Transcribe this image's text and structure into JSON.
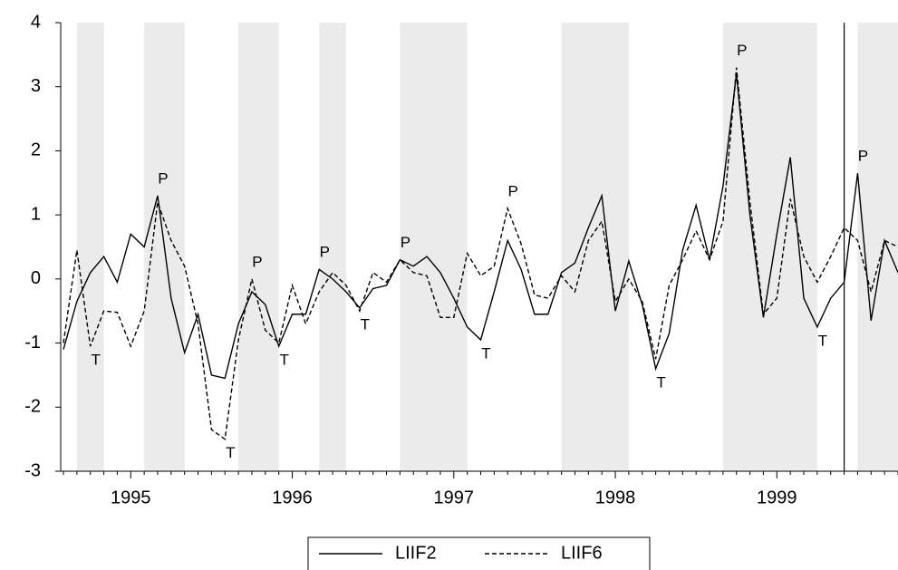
{
  "chart_data": {
    "type": "line",
    "categories": [
      null,
      null,
      null,
      null,
      null,
      "1995",
      null,
      null,
      null,
      null,
      null,
      null,
      null,
      null,
      null,
      null,
      null,
      "1996",
      null,
      null,
      null,
      null,
      null,
      null,
      null,
      null,
      null,
      null,
      null,
      "1997",
      null,
      null,
      null,
      null,
      null,
      null,
      null,
      null,
      null,
      null,
      null,
      "1998",
      null,
      null,
      null,
      null,
      null,
      null,
      null,
      null,
      null,
      null,
      null,
      "1999",
      null,
      null,
      null,
      null,
      null,
      null,
      null,
      null,
      null
    ],
    "series": [
      {
        "name": "LIIF2",
        "color": "#000000",
        "dashed": false,
        "values": [
          -1.1,
          -0.35,
          0.1,
          0.35,
          -0.05,
          0.7,
          0.5,
          1.3,
          -0.3,
          -1.15,
          -0.55,
          -1.5,
          -1.55,
          -0.7,
          -0.2,
          -0.4,
          -1.05,
          -0.55,
          -0.55,
          0.15,
          0.0,
          -0.2,
          -0.45,
          -0.15,
          -0.1,
          0.3,
          0.2,
          0.35,
          0.1,
          -0.3,
          -0.75,
          -0.95,
          -0.2,
          0.6,
          0.15,
          -0.55,
          -0.55,
          0.1,
          0.25,
          0.8,
          1.3,
          -0.5,
          0.28,
          -0.4,
          -1.4,
          -0.85,
          0.45,
          1.15,
          0.3,
          1.45,
          3.2,
          1.0,
          -0.6,
          0.7,
          1.9,
          -0.3,
          -0.75,
          -0.3,
          -0.05,
          1.65,
          -0.65,
          0.6,
          0.1
        ]
      },
      {
        "name": "LIIF6",
        "color": "#000000",
        "dashed": true,
        "values": [
          -1.0,
          0.45,
          -1.05,
          -0.5,
          -0.52,
          -1.05,
          -0.5,
          1.2,
          0.6,
          0.2,
          -0.7,
          -2.35,
          -2.5,
          -0.95,
          0.0,
          -0.8,
          -1.0,
          -0.1,
          -0.7,
          -0.2,
          0.1,
          -0.1,
          -0.5,
          0.1,
          -0.05,
          0.3,
          0.1,
          0.05,
          -0.6,
          -0.6,
          0.4,
          0.05,
          0.2,
          1.1,
          0.55,
          -0.25,
          -0.3,
          0.05,
          -0.2,
          0.6,
          0.9,
          -0.35,
          0.0,
          -0.35,
          -1.25,
          -0.1,
          0.3,
          0.75,
          0.3,
          0.9,
          3.3,
          1.2,
          -0.55,
          -0.3,
          1.25,
          0.35,
          -0.05,
          0.35,
          0.8,
          0.6,
          -0.2,
          0.6,
          0.5
        ]
      }
    ],
    "ylim": [
      -3,
      4
    ],
    "yticks": [
      -3,
      -2,
      -1,
      0,
      1,
      2,
      3,
      4
    ],
    "shaded_ranges": [
      [
        1,
        3
      ],
      [
        6,
        9
      ],
      [
        13,
        16
      ],
      [
        19,
        21
      ],
      [
        25,
        30
      ],
      [
        37,
        42
      ],
      [
        49,
        56
      ],
      [
        59,
        62
      ]
    ],
    "shade_color": "#ebebeb",
    "vline": 58,
    "annotations": [
      {
        "text": "T",
        "index": 2,
        "side": "below"
      },
      {
        "text": "P",
        "index": 7,
        "side": "above"
      },
      {
        "text": "T",
        "index": 12,
        "side": "below"
      },
      {
        "text": "P",
        "index": 14,
        "side": "above"
      },
      {
        "text": "T",
        "index": 16,
        "side": "below"
      },
      {
        "text": "P",
        "index": 19,
        "side": "above"
      },
      {
        "text": "T",
        "index": 22,
        "side": "below"
      },
      {
        "text": "P",
        "index": 25,
        "side": "above"
      },
      {
        "text": "T",
        "index": 31,
        "side": "below"
      },
      {
        "text": "P",
        "index": 33,
        "side": "above"
      },
      {
        "text": "T",
        "index": 44,
        "side": "below"
      },
      {
        "text": "P",
        "index": 50,
        "side": "above"
      },
      {
        "text": "T",
        "index": 56,
        "side": "below"
      },
      {
        "text": "P",
        "index": 59,
        "side": "above"
      }
    ],
    "legend": "bottom"
  }
}
